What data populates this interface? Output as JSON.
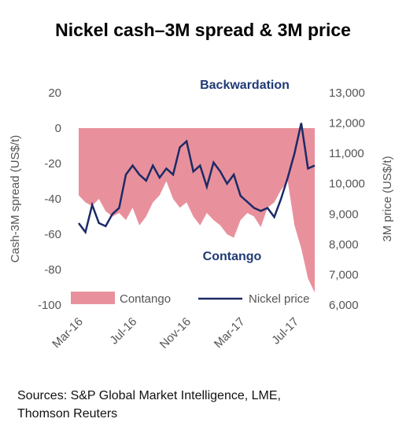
{
  "chart_data": {
    "type": "area_line",
    "title": "Nickel cash–3M spread & 3M price",
    "ylabel": "Cash-3M spread (US$/t)",
    "y2label": "3M price (US$/t)",
    "annotations": [
      "Backwardation",
      "Contango"
    ],
    "source": [
      "Sources: S&P Global Market Intelligence, LME,",
      "Thomson Reuters"
    ],
    "categories": [
      "Mar-16",
      null,
      null,
      null,
      null,
      null,
      null,
      null,
      "Jul-16",
      null,
      null,
      null,
      null,
      null,
      null,
      null,
      "Nov-16",
      null,
      null,
      null,
      null,
      null,
      null,
      null,
      "Mar-17",
      null,
      null,
      null,
      null,
      null,
      null,
      null,
      "Jul-17",
      null,
      null,
      null
    ],
    "series": [
      {
        "name": "Contango",
        "color": "#e8919c",
        "kind": "area",
        "values": [
          -38,
          -42,
          -44,
          -40,
          -47,
          -50,
          -48,
          -52,
          -45,
          -55,
          -50,
          -42,
          -38,
          -30,
          -40,
          -45,
          -42,
          -50,
          -55,
          -48,
          -52,
          -55,
          -60,
          -62,
          -52,
          -48,
          -50,
          -56,
          -45,
          -42,
          -35,
          -30,
          -55,
          -68,
          -85,
          -93
        ]
      },
      {
        "name": "Nickel price",
        "color": "#1c2a66",
        "kind": "line",
        "axis": "y2",
        "values": [
          8700,
          8400,
          9300,
          8700,
          8600,
          9000,
          9200,
          10300,
          10600,
          10300,
          10100,
          10600,
          10200,
          10500,
          10300,
          11200,
          11400,
          10400,
          10600,
          9900,
          10700,
          10400,
          10000,
          10300,
          9600,
          9400,
          9200,
          9100,
          9200,
          8900,
          9500,
          10200,
          11000,
          12000,
          10500,
          10600
        ]
      }
    ],
    "ylim": [
      -100,
      20
    ],
    "yticks": [
      -100,
      -80,
      -60,
      -40,
      -20,
      0,
      20
    ],
    "y2lim": [
      6000,
      13000
    ],
    "y2ticks": [
      {
        "value": 6000,
        "label": "6,000"
      },
      {
        "value": 7000,
        "label": "7,000"
      },
      {
        "value": 8000,
        "label": "8,000"
      },
      {
        "value": 9000,
        "label": "9,000"
      },
      {
        "value": 10000,
        "label": "10,000"
      },
      {
        "value": 11000,
        "label": "11,000"
      },
      {
        "value": 12000,
        "label": "12,000"
      },
      {
        "value": 13000,
        "label": "13,000"
      }
    ],
    "legend": "bottom"
  }
}
